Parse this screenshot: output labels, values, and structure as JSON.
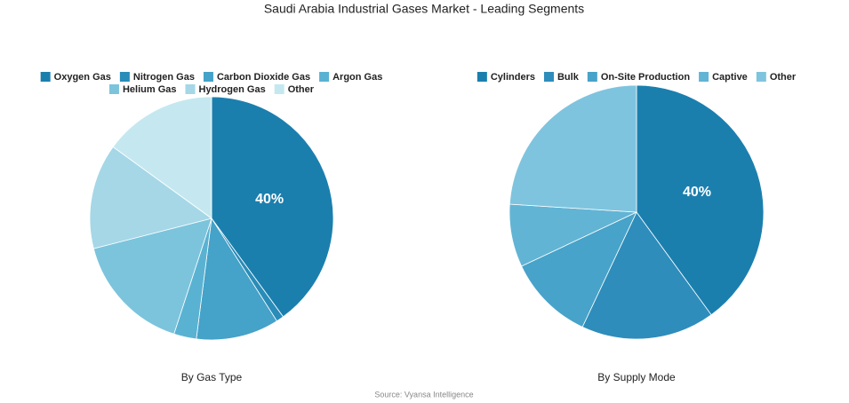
{
  "title": "Saudi Arabia Industrial Gases Market - Leading Segments",
  "source": "Source: Vyansa Intelligence",
  "chart_data": [
    {
      "type": "pie",
      "title": "By Gas Type",
      "categories": [
        "Oxygen Gas",
        "Nitrogen Gas",
        "Carbon Dioxide Gas",
        "Argon Gas",
        "Helium Gas",
        "Hydrogen Gas",
        "Other"
      ],
      "values": [
        40,
        1,
        11,
        3,
        16,
        14,
        15
      ],
      "value_labels": [
        "40%",
        null,
        null,
        null,
        null,
        null,
        null
      ],
      "colors": [
        "#1b7fae",
        "#2a8cb8",
        "#45a2c8",
        "#5ab2d2",
        "#7cc4dc",
        "#a5d7e7",
        "#c5e8f0"
      ]
    },
    {
      "type": "pie",
      "title": "By Supply Mode",
      "categories": [
        "Cylinders",
        "Bulk",
        "On-Site Production",
        "Captive",
        "Other"
      ],
      "values": [
        40,
        17,
        11,
        8,
        24
      ],
      "value_labels": [
        "40%",
        null,
        null,
        null,
        null
      ],
      "colors": [
        "#1b7fae",
        "#2e8dbb",
        "#47a3c9",
        "#62b4d4",
        "#7fc4de"
      ]
    }
  ]
}
